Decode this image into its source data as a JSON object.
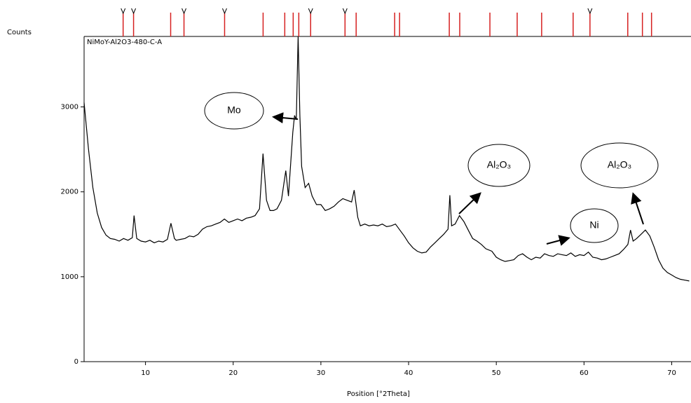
{
  "chart_data": {
    "type": "line",
    "sample_label": "NiMoY-Al2O3-480-C-A",
    "y_label": "Counts",
    "x_label": "Position [°2Theta]",
    "xlim": [
      3,
      72.2
    ],
    "ylim": [
      0,
      3830
    ],
    "xticks": [
      10,
      20,
      30,
      40,
      50,
      60,
      70
    ],
    "yticks": [
      0,
      1000,
      2000,
      3000
    ],
    "reference_lines": {
      "color": "#d62020",
      "x": [
        7.45,
        8.64,
        12.87,
        14.39,
        19.02,
        23.41,
        25.88,
        26.84,
        27.48,
        28.83,
        32.75,
        34.02,
        38.41,
        38.97,
        44.64,
        45.83,
        49.27,
        52.38,
        55.17,
        58.76,
        60.68,
        64.99,
        66.66,
        67.7
      ]
    },
    "reference_markers": {
      "color": "#000000",
      "x": [
        7.45,
        8.64,
        14.39,
        19.02,
        28.83,
        32.75,
        60.68
      ]
    },
    "series": [
      {
        "color": "#000000",
        "x": [
          3,
          3.5,
          4,
          4.5,
          5,
          5.5,
          6,
          6.5,
          7,
          7.5,
          8,
          8.5,
          8.7,
          9,
          9.5,
          10,
          10.5,
          11,
          11.5,
          12,
          12.5,
          12.9,
          13.3,
          13.5,
          14,
          14.5,
          15,
          15.5,
          16,
          16.5,
          17,
          17.5,
          18,
          18.5,
          19,
          19.5,
          20,
          20.5,
          21,
          21.5,
          22,
          22.5,
          23,
          23.4,
          23.8,
          24.2,
          24.6,
          25,
          25.5,
          26,
          26.3,
          26.8,
          27,
          27.2,
          27.4,
          27.6,
          27.8,
          28.2,
          28.6,
          29,
          29.5,
          30,
          30.5,
          31,
          31.5,
          32,
          32.5,
          33,
          33.5,
          33.8,
          34.2,
          34.5,
          35,
          35.5,
          36,
          36.5,
          37,
          37.5,
          38,
          38.5,
          39,
          39.5,
          40,
          40.5,
          41,
          41.5,
          42,
          42.5,
          43,
          43.5,
          44,
          44.5,
          44.7,
          44.9,
          45.3,
          45.8,
          46.3,
          46.8,
          47.3,
          47.8,
          48.3,
          48.8,
          49.5,
          50,
          50.5,
          51,
          51.5,
          52,
          52.5,
          53,
          53.5,
          54,
          54.5,
          55,
          55.5,
          56,
          56.5,
          57,
          57.5,
          58,
          58.5,
          59,
          59.5,
          60,
          60.5,
          61,
          61.5,
          62,
          62.5,
          63,
          63.5,
          64,
          64.5,
          65,
          65.3,
          65.6,
          66,
          66.5,
          67,
          67.5,
          68,
          68.5,
          69,
          69.5,
          70,
          70.5,
          71,
          71.5,
          72
        ],
        "values": [
          3050,
          2500,
          2050,
          1750,
          1580,
          1490,
          1450,
          1440,
          1420,
          1450,
          1430,
          1460,
          1720,
          1450,
          1420,
          1410,
          1430,
          1400,
          1420,
          1410,
          1440,
          1630,
          1450,
          1430,
          1440,
          1450,
          1480,
          1470,
          1500,
          1560,
          1590,
          1600,
          1620,
          1640,
          1680,
          1640,
          1660,
          1680,
          1660,
          1690,
          1700,
          1720,
          1800,
          2450,
          1900,
          1780,
          1780,
          1800,
          1900,
          2250,
          1950,
          2700,
          2900,
          2850,
          3830,
          2900,
          2300,
          2050,
          2100,
          1950,
          1850,
          1850,
          1780,
          1800,
          1830,
          1880,
          1920,
          1900,
          1880,
          2020,
          1700,
          1600,
          1620,
          1600,
          1610,
          1600,
          1620,
          1590,
          1600,
          1620,
          1550,
          1480,
          1400,
          1340,
          1300,
          1280,
          1290,
          1350,
          1400,
          1450,
          1500,
          1560,
          1960,
          1600,
          1620,
          1720,
          1650,
          1550,
          1450,
          1420,
          1380,
          1330,
          1300,
          1230,
          1200,
          1180,
          1190,
          1200,
          1250,
          1270,
          1230,
          1200,
          1230,
          1220,
          1270,
          1250,
          1240,
          1270,
          1260,
          1250,
          1280,
          1240,
          1260,
          1250,
          1290,
          1230,
          1220,
          1200,
          1210,
          1230,
          1250,
          1270,
          1320,
          1380,
          1550,
          1420,
          1450,
          1500,
          1550,
          1480,
          1350,
          1200,
          1100,
          1050,
          1020,
          990,
          970,
          960,
          950
        ]
      }
    ],
    "annotations": [
      "Mo",
      "Al₂O₃",
      "Al₂O₃",
      "Ni"
    ]
  }
}
